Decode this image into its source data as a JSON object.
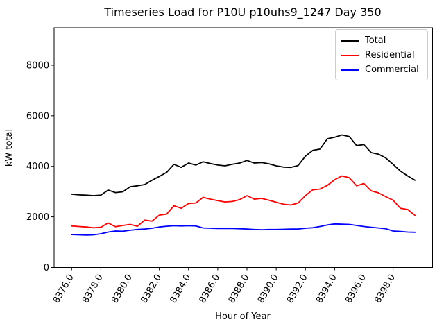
{
  "title": "Timeseries Load for P10U p10uhs9_1247  Day 350",
  "chart_data": {
    "type": "line",
    "title": "Timeseries Load for P10U p10uhs9_1247  Day 350",
    "xlabel": "Hour of Year",
    "ylabel": "kW total",
    "xlim": [
      8374.8,
      8400.7
    ],
    "ylim": [
      0,
      9480
    ],
    "grid": false,
    "legend_position": "upper right",
    "xticks": {
      "values": [
        8376,
        8378,
        8380,
        8382,
        8384,
        8386,
        8388,
        8390,
        8392,
        8394,
        8396,
        8398
      ],
      "labels": [
        "8376.0",
        "8378.0",
        "8380.0",
        "8382.0",
        "8384.0",
        "8386.0",
        "8388.0",
        "8390.0",
        "8392.0",
        "8394.0",
        "8396.0",
        "8398.0"
      ],
      "rotation_deg": 60
    },
    "yticks": {
      "values": [
        0,
        2000,
        4000,
        6000,
        8000
      ],
      "labels": [
        "0",
        "2000",
        "4000",
        "6000",
        "8000"
      ]
    },
    "x": [
      8376.0,
      8376.5,
      8377.0,
      8377.5,
      8378.0,
      8378.5,
      8379.0,
      8379.5,
      8380.0,
      8380.5,
      8381.0,
      8381.5,
      8382.0,
      8382.5,
      8383.0,
      8383.5,
      8384.0,
      8384.5,
      8385.0,
      8385.5,
      8386.0,
      8386.5,
      8387.0,
      8387.5,
      8388.0,
      8388.5,
      8389.0,
      8389.5,
      8390.0,
      8390.5,
      8391.0,
      8391.5,
      8392.0,
      8392.5,
      8393.0,
      8393.5,
      8394.0,
      8394.5,
      8395.0,
      8395.5,
      8396.0,
      8396.5,
      8397.0,
      8397.5,
      8398.0,
      8398.5,
      8399.0,
      8399.5
    ],
    "series": [
      {
        "name": "Total",
        "color": "#000000",
        "values": [
          2900,
          2870,
          2860,
          2840,
          2860,
          3060,
          2960,
          2990,
          3190,
          3230,
          3280,
          3450,
          3600,
          3760,
          4080,
          3960,
          4130,
          4050,
          4180,
          4110,
          4050,
          4020,
          4080,
          4130,
          4230,
          4130,
          4150,
          4100,
          4020,
          3970,
          3960,
          4030,
          4400,
          4630,
          4680,
          5090,
          5150,
          5240,
          5180,
          4820,
          4860,
          4540,
          4480,
          4330,
          4080,
          3810,
          3620,
          3450
        ]
      },
      {
        "name": "Residential",
        "color": "#ff0000",
        "values": [
          1640,
          1620,
          1600,
          1570,
          1590,
          1760,
          1610,
          1660,
          1700,
          1630,
          1870,
          1830,
          2070,
          2110,
          2440,
          2340,
          2530,
          2550,
          2770,
          2700,
          2640,
          2590,
          2610,
          2680,
          2840,
          2700,
          2730,
          2660,
          2580,
          2500,
          2470,
          2550,
          2840,
          3070,
          3100,
          3250,
          3470,
          3620,
          3550,
          3230,
          3320,
          3030,
          2950,
          2800,
          2660,
          2340,
          2290,
          2060
        ]
      },
      {
        "name": "Commercial",
        "color": "#0000ff",
        "values": [
          1300,
          1290,
          1280,
          1290,
          1330,
          1400,
          1440,
          1430,
          1470,
          1500,
          1520,
          1550,
          1600,
          1630,
          1650,
          1640,
          1650,
          1640,
          1560,
          1550,
          1540,
          1540,
          1540,
          1530,
          1520,
          1500,
          1490,
          1500,
          1500,
          1510,
          1520,
          1520,
          1550,
          1570,
          1620,
          1680,
          1720,
          1710,
          1700,
          1660,
          1620,
          1590,
          1560,
          1530,
          1440,
          1420,
          1400,
          1390
        ]
      }
    ]
  }
}
